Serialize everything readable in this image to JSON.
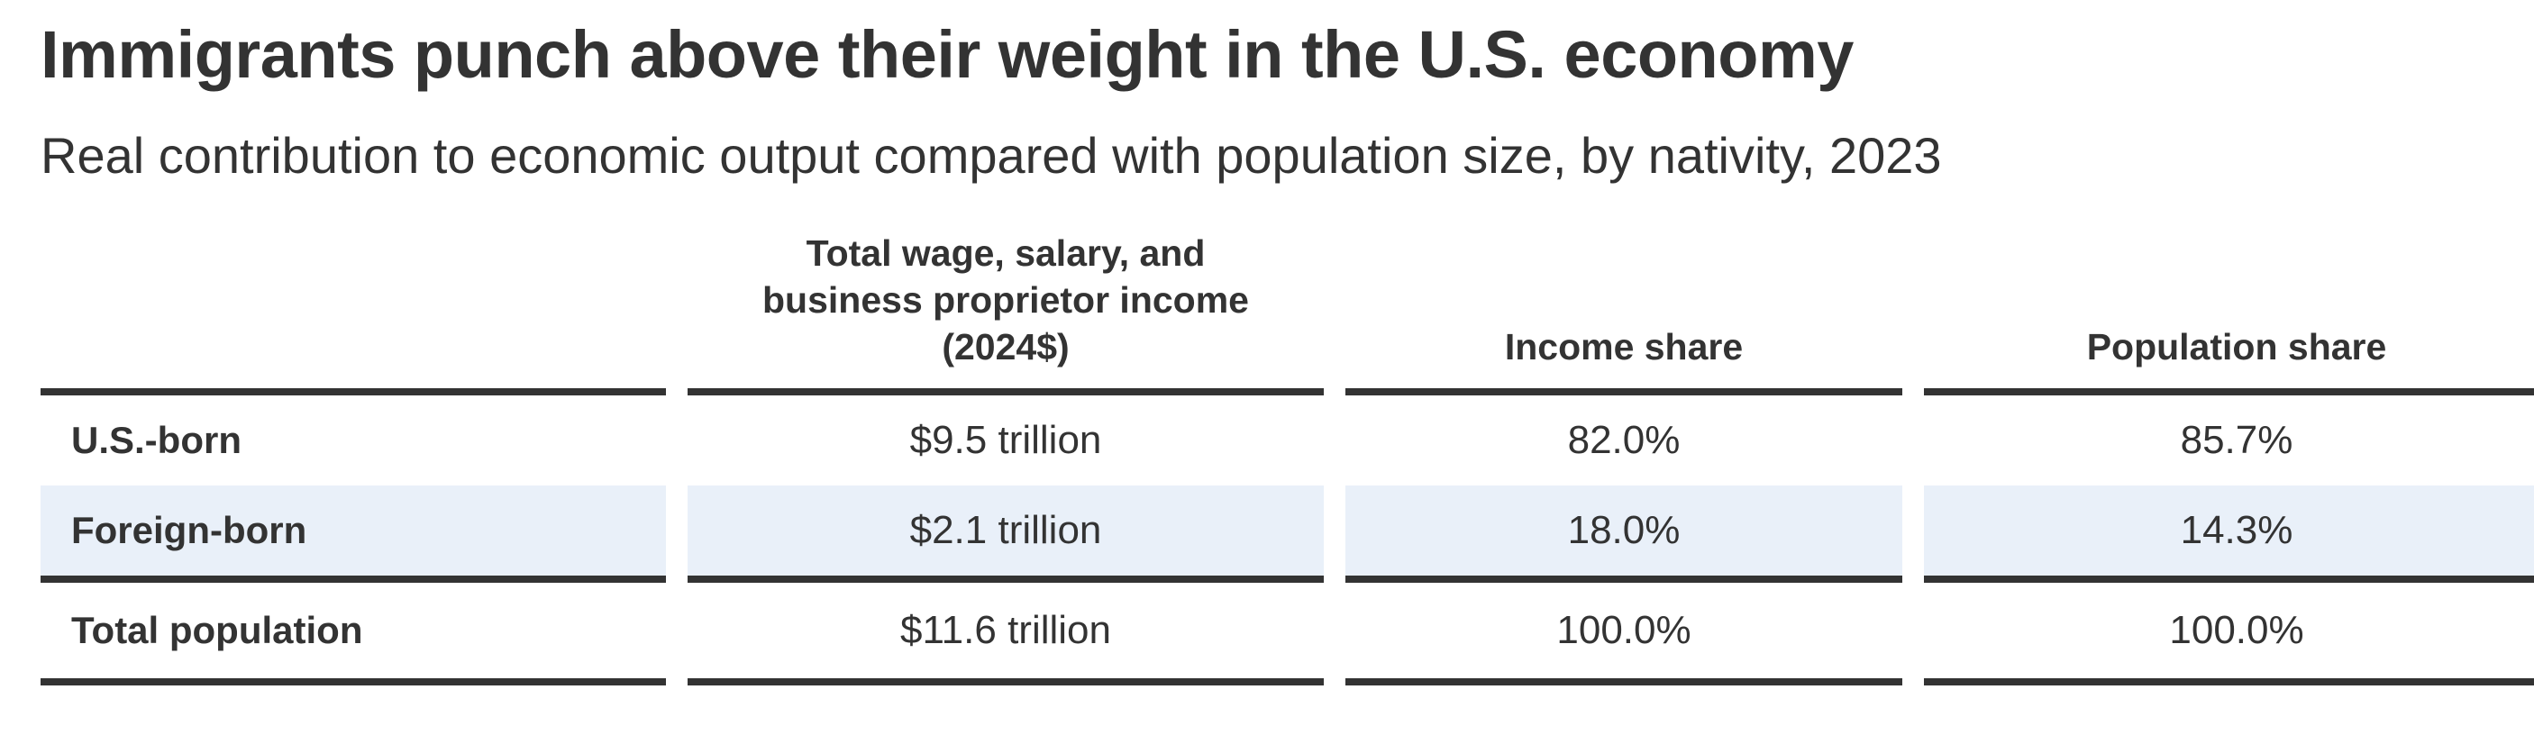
{
  "title": "Immigrants punch above their weight in the U.S. economy",
  "subtitle": "Real contribution to economic output compared with population size, by nativity, 2023",
  "chart_data": {
    "type": "table",
    "columns": [
      "",
      "Total wage, salary, and business proprietor income (2024$)",
      "Income share",
      "Population share"
    ],
    "column_header_lines": {
      "income": [
        "Total wage, salary, and",
        "business proprietor income",
        "(2024$)"
      ],
      "income_share": "Income share",
      "population_share": "Population share"
    },
    "rows": [
      {
        "label": "U.S.-born",
        "income": "$9.5 trillion",
        "income_share": "82.0%",
        "population_share": "85.7%"
      },
      {
        "label": "Foreign-born",
        "income": "$2.1 trillion",
        "income_share": "18.0%",
        "population_share": "14.3%"
      },
      {
        "label": "Total population",
        "income": "$11.6 trillion",
        "income_share": "100.0%",
        "population_share": "100.0%"
      }
    ],
    "colors": {
      "text": "#333333",
      "rule": "#333333",
      "shaded_row": "#e9f0f9"
    }
  }
}
